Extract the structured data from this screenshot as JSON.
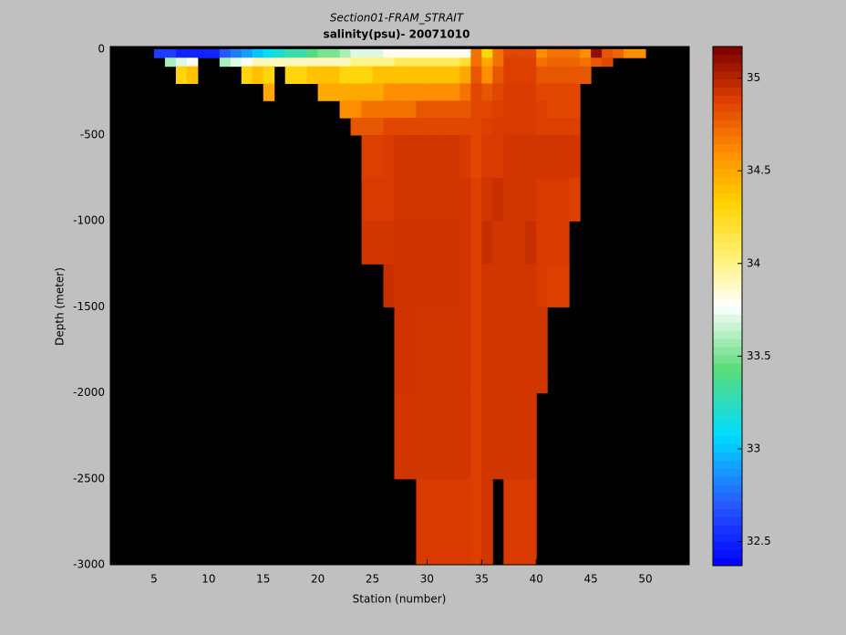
{
  "chart_data": {
    "type": "heatmap",
    "title": "Section01-FRAM_STRAIT",
    "subtitle": "salinity(psu)- 20071010",
    "x_label": "Station (number)",
    "y_label": "Depth (meter)",
    "xlim": [
      1,
      54
    ],
    "xticks": [
      5,
      10,
      15,
      20,
      25,
      30,
      35,
      40,
      45,
      50
    ],
    "ylim": [
      -3000,
      15
    ],
    "yticks": [
      0,
      -500,
      -1000,
      -1500,
      -2000,
      -2500,
      -3000
    ],
    "clim": [
      32.37,
      35.17
    ],
    "cticks": [
      32.5,
      33,
      33.5,
      34,
      34.5,
      35
    ],
    "background": "#000000",
    "x_edges": [
      5,
      6,
      7,
      8,
      9,
      10,
      11,
      12,
      13,
      14,
      15,
      16,
      17,
      18,
      19,
      20,
      21,
      22,
      23,
      24,
      25,
      26,
      27,
      28,
      29,
      30,
      31,
      32,
      33,
      34,
      35,
      36,
      37,
      38,
      39,
      40,
      41,
      42,
      43,
      44,
      45,
      46,
      47,
      48,
      49,
      50
    ],
    "y_edges": [
      0,
      -50,
      -100,
      -200,
      -300,
      -400,
      -500,
      -750,
      -1000,
      -1250,
      -1500,
      -2000,
      -2500,
      -3000
    ],
    "z": [
      [
        32.6
      ],
      [
        32.6,
        33.6
      ],
      [
        32.5,
        33.7,
        34.3
      ],
      [
        32.5,
        33.8,
        34.4
      ],
      [
        32.5
      ],
      [
        32.5
      ],
      [
        32.7,
        33.6
      ],
      [
        32.8,
        33.7
      ],
      [
        32.9,
        33.8,
        34.3
      ],
      [
        33.0,
        33.9,
        34.4
      ],
      [
        33.1,
        33.9,
        34.3,
        34.5
      ],
      [
        33.2,
        33.9
      ],
      [
        33.3,
        33.9,
        34.3
      ],
      [
        33.3,
        33.9,
        34.3
      ],
      [
        33.4,
        33.9,
        34.4
      ],
      [
        33.5,
        33.9,
        34.4,
        34.5
      ],
      [
        33.5,
        33.9,
        34.4,
        34.5
      ],
      [
        33.6,
        33.9,
        34.3,
        34.5,
        34.6
      ],
      [
        33.7,
        34.0,
        34.3,
        34.5,
        34.6,
        34.8
      ],
      [
        33.7,
        34.0,
        34.3,
        34.5,
        34.7,
        34.8,
        34.88,
        34.9,
        34.92
      ],
      [
        33.7,
        34.0,
        34.4,
        34.5,
        34.7,
        34.8,
        34.88,
        34.9,
        34.92
      ],
      [
        33.8,
        34.0,
        34.4,
        34.6,
        34.7,
        34.85,
        34.9,
        34.9,
        34.92,
        34.95
      ],
      [
        33.8,
        34.1,
        34.4,
        34.6,
        34.7,
        34.85,
        34.92,
        34.92,
        34.93,
        34.93,
        34.93,
        34.92
      ],
      [
        33.8,
        34.1,
        34.4,
        34.6,
        34.7,
        34.85,
        34.92,
        34.92,
        34.93,
        34.93,
        34.93,
        34.92
      ],
      [
        33.8,
        34.1,
        34.4,
        34.6,
        34.8,
        34.85,
        34.92,
        34.92,
        34.93,
        34.93,
        34.92,
        34.92,
        34.9
      ],
      [
        33.8,
        34.1,
        34.4,
        34.6,
        34.8,
        34.85,
        34.92,
        34.92,
        34.93,
        34.93,
        34.92,
        34.92,
        34.9
      ],
      [
        33.8,
        34.1,
        34.4,
        34.6,
        34.8,
        34.85,
        34.92,
        34.92,
        34.93,
        34.93,
        34.92,
        34.92,
        34.9
      ],
      [
        33.8,
        34.1,
        34.4,
        34.6,
        34.8,
        34.85,
        34.92,
        34.92,
        34.93,
        34.93,
        34.92,
        34.92,
        34.9
      ],
      [
        33.8,
        34.2,
        34.5,
        34.7,
        34.8,
        34.85,
        34.9,
        34.92,
        34.92,
        34.92,
        34.92,
        34.92,
        34.9
      ],
      [
        34.7,
        34.7,
        34.8,
        34.85,
        34.85,
        34.85,
        34.85,
        34.88,
        34.88,
        34.88,
        34.88,
        34.88,
        34.88
      ],
      [
        34.3,
        34.5,
        34.6,
        34.8,
        34.85,
        34.88,
        34.9,
        34.92,
        34.95,
        34.92,
        34.92,
        34.92,
        34.92
      ],
      [
        34.7,
        34.7,
        34.8,
        34.85,
        34.88,
        34.9,
        34.9,
        34.95,
        34.92,
        34.92,
        34.92,
        34.92
      ],
      [
        34.85,
        34.88,
        34.88,
        34.9,
        34.9,
        34.9,
        34.92,
        34.92,
        34.92,
        34.92,
        34.92,
        34.92,
        34.9
      ],
      [
        34.85,
        34.88,
        34.88,
        34.9,
        34.9,
        34.9,
        34.92,
        34.92,
        34.92,
        34.92,
        34.92,
        34.92,
        34.9
      ],
      [
        34.85,
        34.88,
        34.88,
        34.9,
        34.9,
        34.9,
        34.92,
        34.92,
        34.95,
        34.92,
        34.92,
        34.92,
        34.9
      ],
      [
        34.6,
        34.7,
        34.8,
        34.85,
        34.88,
        34.88,
        34.92,
        34.9,
        34.9,
        34.9,
        34.92
      ],
      [
        34.7,
        34.75,
        34.8,
        34.85,
        34.85,
        34.88,
        34.92,
        34.9,
        34.9,
        34.88
      ],
      [
        34.7,
        34.75,
        34.8,
        34.85,
        34.85,
        34.88,
        34.92,
        34.9,
        34.9,
        34.88
      ],
      [
        34.7,
        34.75,
        34.8,
        34.85,
        34.85,
        34.88,
        34.92,
        34.88
      ],
      [
        34.6,
        34.7,
        34.8
      ],
      [
        35.1,
        34.8
      ],
      [
        34.8,
        34.85
      ],
      [
        34.75
      ],
      [
        34.6
      ],
      [
        34.6
      ]
    ]
  }
}
